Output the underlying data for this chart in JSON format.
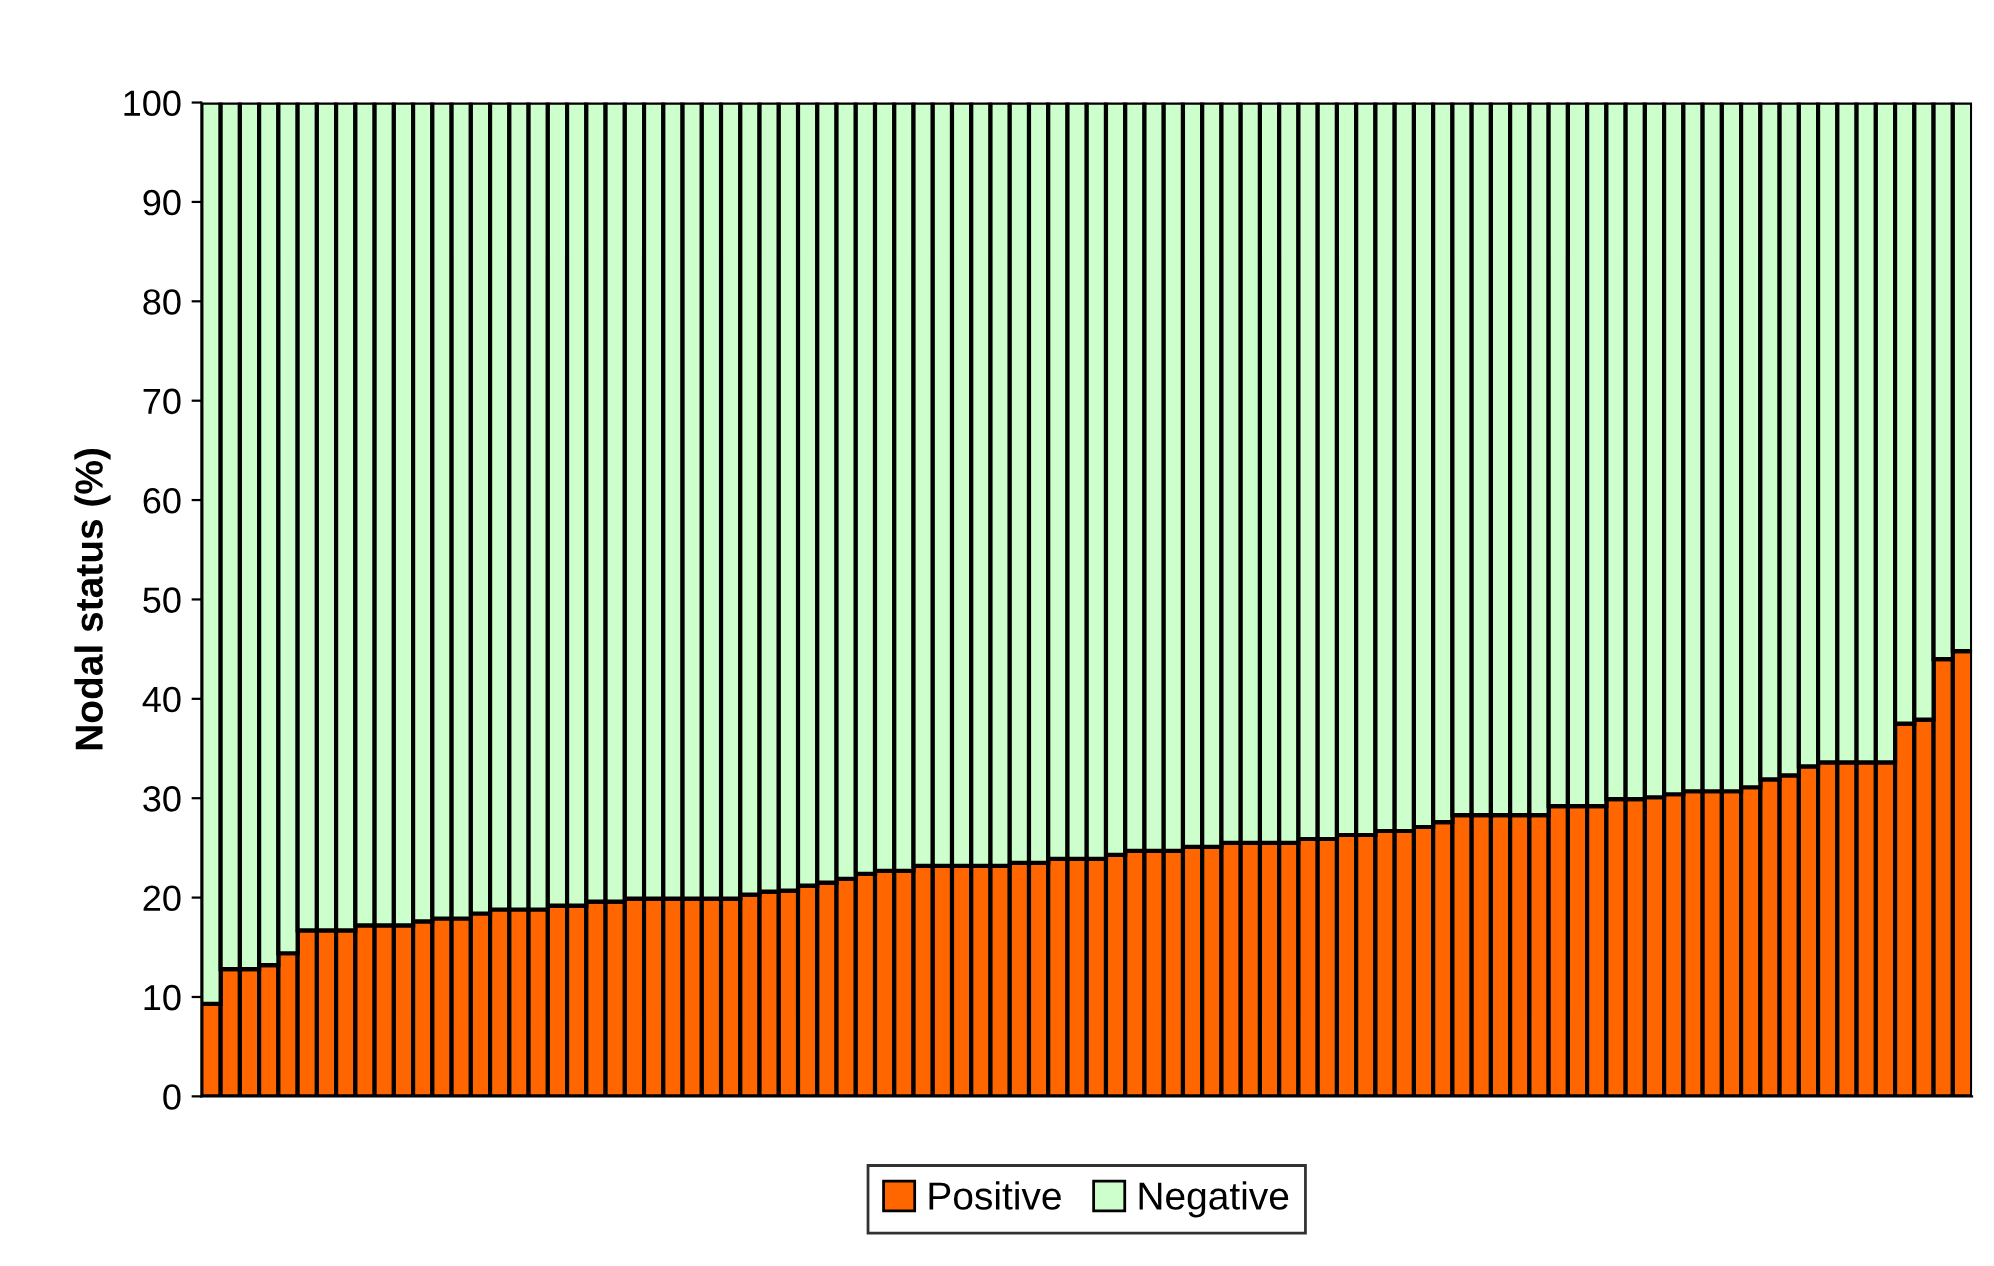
{
  "chart_data": {
    "type": "bar",
    "stacked": true,
    "ylabel": "Nodal status (%)",
    "categories": [
      null,
      null,
      null,
      null,
      null,
      null,
      null,
      null,
      null,
      null,
      null,
      null,
      null,
      null,
      null,
      null,
      null,
      null,
      null,
      null,
      null,
      null,
      null,
      null,
      null,
      null,
      null,
      null,
      null,
      null,
      null,
      null,
      null,
      null,
      null,
      null,
      null,
      null,
      null,
      null,
      null,
      null,
      null,
      null,
      null,
      null,
      null,
      null,
      null,
      null,
      null,
      null,
      null,
      null,
      null,
      null,
      null,
      null,
      null,
      null,
      null,
      null,
      null,
      null,
      null,
      null,
      null,
      null,
      null,
      null,
      null,
      null,
      null,
      null,
      null,
      null,
      null,
      null,
      null,
      null,
      null,
      null,
      null,
      null,
      null,
      null,
      null,
      null,
      null,
      null,
      null,
      null
    ],
    "series": [
      {
        "name": "Positive",
        "color": "#ff6600",
        "values": [
          9.3,
          12.8,
          12.8,
          13.2,
          14.4,
          16.7,
          16.7,
          16.7,
          17.2,
          17.2,
          17.2,
          17.6,
          17.9,
          17.9,
          18.4,
          18.8,
          18.8,
          18.8,
          19.2,
          19.2,
          19.6,
          19.6,
          19.9,
          19.9,
          19.9,
          19.9,
          19.9,
          19.9,
          20.3,
          20.6,
          20.7,
          21.2,
          21.5,
          21.9,
          22.4,
          22.7,
          22.7,
          23.2,
          23.2,
          23.2,
          23.2,
          23.2,
          23.5,
          23.5,
          23.9,
          23.9,
          23.9,
          24.3,
          24.7,
          24.7,
          24.7,
          25.1,
          25.1,
          25.5,
          25.5,
          25.5,
          25.5,
          25.9,
          25.9,
          26.3,
          26.3,
          26.7,
          26.7,
          27.1,
          27.6,
          28.3,
          28.3,
          28.3,
          28.3,
          28.3,
          29.2,
          29.2,
          29.2,
          29.9,
          29.9,
          30.1,
          30.4,
          30.7,
          30.7,
          30.7,
          31.1,
          31.9,
          32.3,
          33.2,
          33.6,
          33.6,
          33.6,
          33.6,
          37.5,
          37.9,
          44.0,
          44.8
        ]
      },
      {
        "name": "Negative",
        "color": "#ccffcc",
        "values": [
          90.7,
          87.2,
          87.2,
          86.8,
          85.6,
          83.3,
          83.3,
          83.3,
          82.8,
          82.8,
          82.8,
          82.4,
          82.1,
          82.1,
          81.6,
          81.2,
          81.2,
          81.2,
          80.8,
          80.8,
          80.4,
          80.4,
          80.1,
          80.1,
          80.1,
          80.1,
          80.1,
          80.1,
          79.7,
          79.4,
          79.3,
          78.8,
          78.5,
          78.1,
          77.6,
          77.3,
          77.3,
          76.8,
          76.8,
          76.8,
          76.8,
          76.8,
          76.5,
          76.5,
          76.1,
          76.1,
          76.1,
          75.7,
          75.3,
          75.3,
          75.3,
          74.9,
          74.9,
          74.5,
          74.5,
          74.5,
          74.5,
          74.1,
          74.1,
          73.7,
          73.7,
          73.3,
          73.3,
          72.9,
          72.4,
          71.7,
          71.7,
          71.7,
          71.7,
          71.7,
          70.8,
          70.8,
          70.8,
          70.1,
          70.1,
          69.9,
          69.6,
          69.3,
          69.3,
          69.3,
          68.9,
          68.1,
          67.7,
          66.8,
          66.4,
          66.4,
          66.4,
          66.4,
          62.5,
          62.1,
          56.0,
          55.2
        ]
      }
    ],
    "ylim": [
      0,
      100
    ],
    "yticks": [
      0,
      10,
      20,
      30,
      40,
      50,
      60,
      70,
      80,
      90,
      100
    ],
    "grid": false,
    "legend": "bottom",
    "tick_labels": "y"
  }
}
